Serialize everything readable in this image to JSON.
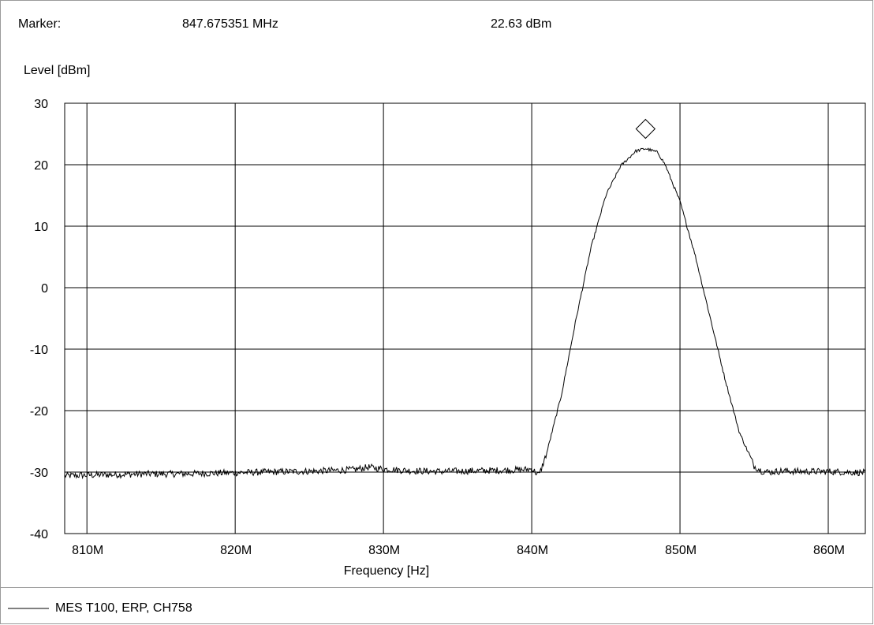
{
  "marker": {
    "label": "Marker:",
    "frequency": "847.675351 MHz",
    "level": "22.63 dBm",
    "x_mhz": 847.675351,
    "y_dbm": 22.63
  },
  "legend": {
    "entry": "MES  T100, ERP, CH758"
  },
  "chart_data": {
    "type": "line",
    "xlabel": "Frequency [Hz]",
    "ylabel": "Level [dBm]",
    "xlim_mhz": [
      808.5,
      862.5
    ],
    "ylim": [
      -40,
      30
    ],
    "x_ticks": [
      810,
      820,
      830,
      840,
      850,
      860
    ],
    "x_tick_labels": [
      "810M",
      "820M",
      "830M",
      "840M",
      "850M",
      "860M"
    ],
    "y_ticks": [
      30,
      20,
      10,
      0,
      -10,
      -20,
      -30,
      -40
    ],
    "y_tick_labels": [
      "30",
      "20",
      "10",
      "0",
      "-10",
      "-20",
      "-30",
      "-40"
    ],
    "grid": true,
    "legend_position": "bottom-left",
    "series": [
      {
        "name": "MES  T100, ERP, CH758",
        "color": "#000000",
        "x": [
          808.5,
          810.0,
          812.0,
          814.0,
          816.0,
          818.0,
          820.0,
          822.0,
          824.0,
          826.0,
          828.0,
          829.0,
          830.0,
          832.0,
          834.0,
          836.0,
          838.0,
          839.5,
          840.0,
          840.5,
          841.0,
          842.0,
          843.0,
          844.0,
          845.0,
          846.0,
          847.0,
          847.68,
          848.5,
          849.0,
          850.0,
          851.0,
          852.0,
          853.0,
          854.0,
          855.0,
          855.5,
          856.0,
          857.0,
          858.0,
          860.0,
          862.5
        ],
        "y": [
          -30.6,
          -30.5,
          -30.4,
          -30.3,
          -30.3,
          -30.2,
          -30.1,
          -30.0,
          -29.9,
          -29.8,
          -29.6,
          -29.2,
          -29.5,
          -29.8,
          -29.9,
          -29.8,
          -29.7,
          -29.6,
          -29.5,
          -30.5,
          -27.0,
          -17.5,
          -5.0,
          6.5,
          15.0,
          19.8,
          22.2,
          22.63,
          22.0,
          20.0,
          14.0,
          5.5,
          -4.5,
          -14.5,
          -23.5,
          -29.0,
          -29.8,
          -30.0,
          -29.8,
          -29.9,
          -29.9,
          -30.1
        ]
      }
    ]
  }
}
